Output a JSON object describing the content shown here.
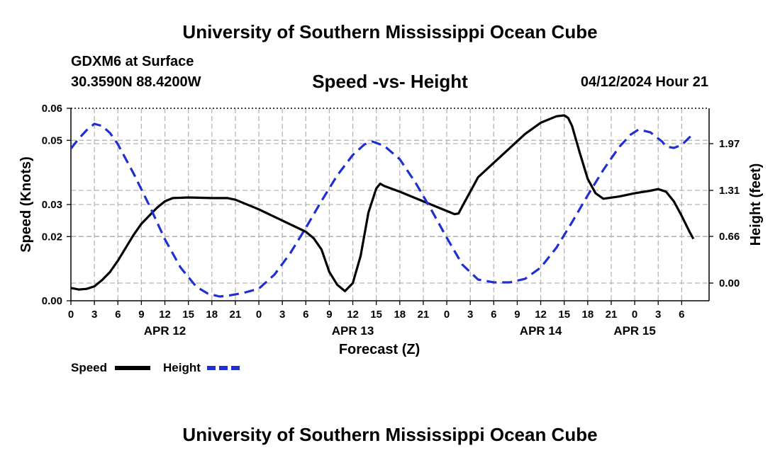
{
  "header": {
    "title": "University of Southern Mississippi Ocean Cube",
    "station": "GDXM6 at Surface",
    "coordinates": "30.3590N  88.4200W",
    "datetime": "04/12/2024 Hour 21",
    "footer_title": "University of Southern Mississippi Ocean Cube"
  },
  "chart_data": {
    "type": "line",
    "title": "Speed -vs- Height",
    "xlabel": "Forecast (Z)",
    "ylabel": "Speed (Knots)",
    "y2label": "Height (feet)",
    "ylim": [
      0,
      0.06
    ],
    "y2lim": [
      -0.25,
      2.47
    ],
    "x_unit": "hours from 04/12 00Z",
    "xlim": [
      0,
      78
    ],
    "x_tick_step": 3,
    "x_tick_labels": [
      "0",
      "3",
      "6",
      "9",
      "12",
      "15",
      "18",
      "21",
      "0",
      "3",
      "6",
      "9",
      "12",
      "15",
      "18",
      "21",
      "0",
      "3",
      "6",
      "9",
      "12",
      "15",
      "18",
      "21",
      "0",
      "3",
      "6"
    ],
    "y_ticks": [
      0,
      0.02,
      0.03,
      0.05,
      0.06
    ],
    "y_tick_labels": [
      "0.00",
      "0.02",
      "0.03",
      "0.05",
      "0.06"
    ],
    "y2_ticks": [
      0.0,
      0.66,
      1.31,
      1.97
    ],
    "y2_tick_labels": [
      "0.00",
      "0.66",
      "1.31",
      "1.97"
    ],
    "date_labels": [
      {
        "x": 12,
        "label": "APR 12"
      },
      {
        "x": 36,
        "label": "APR 13"
      },
      {
        "x": 60,
        "label": "APR 14"
      },
      {
        "x": 72,
        "label": "APR 15"
      }
    ],
    "grid": true,
    "legend_position": "bottom-left",
    "series": [
      {
        "name": "Speed",
        "color": "#000000",
        "style": "solid",
        "axis": "left",
        "points": [
          [
            0,
            0.004
          ],
          [
            1,
            0.0035
          ],
          [
            2,
            0.0037
          ],
          [
            3,
            0.0045
          ],
          [
            4,
            0.0065
          ],
          [
            5,
            0.009
          ],
          [
            6,
            0.0125
          ],
          [
            7,
            0.0165
          ],
          [
            8,
            0.0205
          ],
          [
            9,
            0.024
          ],
          [
            10,
            0.0265
          ],
          [
            11,
            0.029
          ],
          [
            12,
            0.031
          ],
          [
            13,
            0.032
          ],
          [
            15,
            0.0322
          ],
          [
            18,
            0.032
          ],
          [
            20,
            0.032
          ],
          [
            21,
            0.0315
          ],
          [
            22,
            0.0305
          ],
          [
            24,
            0.0285
          ],
          [
            27,
            0.025
          ],
          [
            30,
            0.0215
          ],
          [
            31,
            0.0195
          ],
          [
            32,
            0.016
          ],
          [
            33,
            0.009
          ],
          [
            34,
            0.005
          ],
          [
            35,
            0.003
          ],
          [
            36,
            0.0055
          ],
          [
            37,
            0.014
          ],
          [
            38,
            0.0275
          ],
          [
            39,
            0.035
          ],
          [
            39.5,
            0.0365
          ],
          [
            40,
            0.0358
          ],
          [
            42,
            0.034
          ],
          [
            45,
            0.031
          ],
          [
            48,
            0.028
          ],
          [
            49,
            0.027
          ],
          [
            49.5,
            0.0272
          ],
          [
            50,
            0.0295
          ],
          [
            51,
            0.034
          ],
          [
            52,
            0.0385
          ],
          [
            54,
            0.043
          ],
          [
            56,
            0.0475
          ],
          [
            58,
            0.052
          ],
          [
            60,
            0.0555
          ],
          [
            62,
            0.0575
          ],
          [
            63,
            0.0578
          ],
          [
            63.5,
            0.057
          ],
          [
            64,
            0.0545
          ],
          [
            65,
            0.046
          ],
          [
            66,
            0.038
          ],
          [
            67,
            0.0335
          ],
          [
            68,
            0.0318
          ],
          [
            70,
            0.0325
          ],
          [
            72,
            0.0335
          ],
          [
            74,
            0.0343
          ],
          [
            75,
            0.0348
          ],
          [
            76,
            0.034
          ],
          [
            77,
            0.031
          ],
          [
            78,
            0.0265
          ],
          [
            79,
            0.0215
          ],
          [
            79.5,
            0.0193
          ]
        ]
      },
      {
        "name": "Height",
        "color": "#1f2fd1",
        "style": "dashed",
        "axis": "right",
        "points": [
          [
            0,
            1.9
          ],
          [
            1,
            2.04
          ],
          [
            2,
            2.16
          ],
          [
            3,
            2.25
          ],
          [
            4,
            2.22
          ],
          [
            5,
            2.12
          ],
          [
            6,
            1.96
          ],
          [
            8,
            1.55
          ],
          [
            10,
            1.1
          ],
          [
            12,
            0.62
          ],
          [
            14,
            0.22
          ],
          [
            16,
            -0.05
          ],
          [
            17.5,
            -0.15
          ],
          [
            19,
            -0.19
          ],
          [
            20,
            -0.18
          ],
          [
            22,
            -0.14
          ],
          [
            24,
            -0.08
          ],
          [
            26,
            0.12
          ],
          [
            28,
            0.42
          ],
          [
            30,
            0.78
          ],
          [
            32,
            1.16
          ],
          [
            34,
            1.52
          ],
          [
            36,
            1.81
          ],
          [
            37.5,
            1.96
          ],
          [
            38.5,
            2.0
          ],
          [
            40,
            1.94
          ],
          [
            42,
            1.75
          ],
          [
            44,
            1.42
          ],
          [
            46,
            1.04
          ],
          [
            48,
            0.64
          ],
          [
            50,
            0.26
          ],
          [
            52,
            0.05
          ],
          [
            54,
            0.01
          ],
          [
            56,
            0.01
          ],
          [
            58,
            0.06
          ],
          [
            60,
            0.22
          ],
          [
            62,
            0.5
          ],
          [
            64,
            0.86
          ],
          [
            66,
            1.24
          ],
          [
            68,
            1.6
          ],
          [
            70,
            1.92
          ],
          [
            71.5,
            2.1
          ],
          [
            72.5,
            2.17
          ],
          [
            74,
            2.13
          ],
          [
            75.5,
            2.0
          ],
          [
            76,
            1.93
          ],
          [
            77,
            1.91
          ],
          [
            78,
            1.95
          ],
          [
            79,
            2.06
          ],
          [
            79.5,
            2.1
          ]
        ]
      }
    ]
  }
}
